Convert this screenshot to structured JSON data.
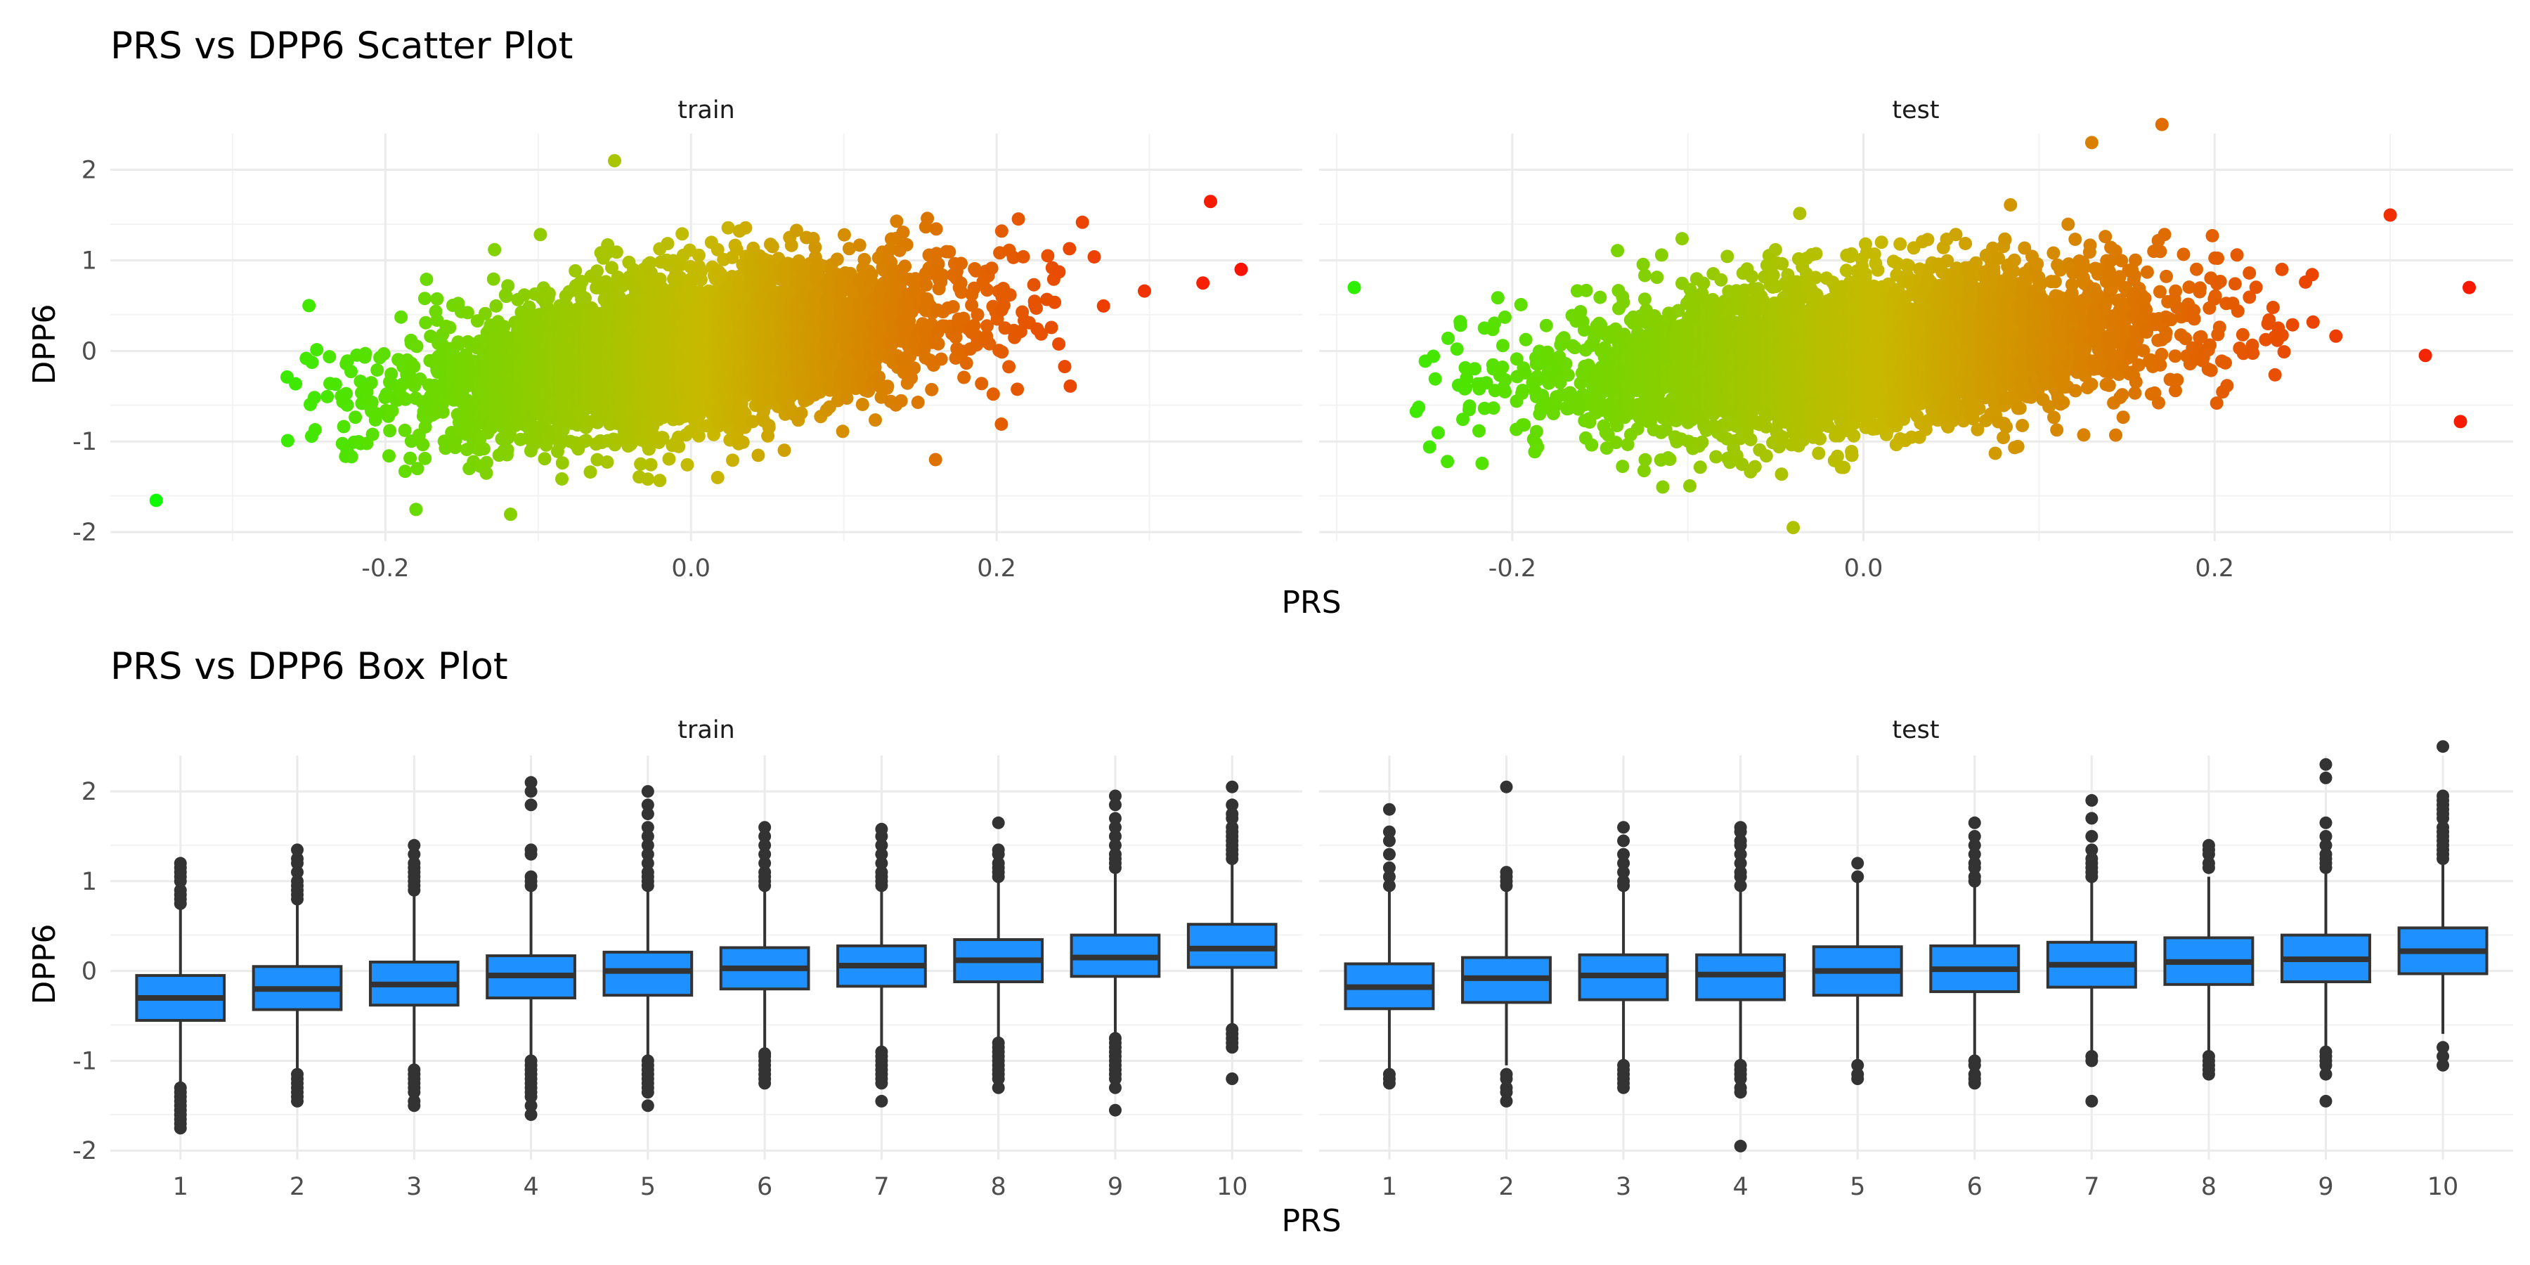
{
  "chart_data": [
    {
      "type": "scatter",
      "title": "PRS vs DPP6 Scatter Plot",
      "xlabel": "PRS",
      "ylabel": "DPP6",
      "facets": [
        "train",
        "test"
      ],
      "color_by": "PRS",
      "color_low": "#00ff00",
      "color_high": "#ff0000",
      "grid": true,
      "legend": "none",
      "panels": [
        {
          "name": "train",
          "xlim": [
            -0.38,
            0.4
          ],
          "ylim": [
            -2.1,
            2.4
          ],
          "xticks": [
            -0.2,
            0.0,
            0.2
          ],
          "xtick_labels": [
            "-0.2",
            "0.0",
            "0.2"
          ],
          "yticks": [
            -2,
            -1,
            0,
            1,
            2
          ],
          "ytick_labels": [
            "-2",
            "-1",
            "0",
            "1",
            "2"
          ],
          "bulk_x_range": [
            -0.27,
            0.31
          ],
          "trend": {
            "slope": 2.4,
            "intercept": 0.0
          },
          "residual_sd": 0.42,
          "outliers": [
            [
              -0.35,
              -1.65
            ],
            [
              0.34,
              1.65
            ],
            [
              0.36,
              0.9
            ],
            [
              0.335,
              0.75
            ],
            [
              -0.05,
              2.1
            ],
            [
              -0.25,
              0.5
            ],
            [
              -0.18,
              -1.75
            ],
            [
              0.16,
              -1.2
            ]
          ]
        },
        {
          "name": "test",
          "xlim": [
            -0.31,
            0.37
          ],
          "ylim": [
            -2.1,
            2.4
          ],
          "xticks": [
            -0.2,
            0.0,
            0.2
          ],
          "xtick_labels": [
            "-0.2",
            "0.0",
            "0.2"
          ],
          "yticks": [
            -2,
            -1,
            0,
            1,
            2
          ],
          "ytick_labels": [
            "-2",
            "-1",
            "0",
            "1",
            "2"
          ],
          "bulk_x_range": [
            -0.26,
            0.27
          ],
          "trend": {
            "slope": 1.9,
            "intercept": 0.0
          },
          "residual_sd": 0.42,
          "outliers": [
            [
              -0.29,
              0.7
            ],
            [
              0.345,
              0.7
            ],
            [
              0.34,
              -0.78
            ],
            [
              0.17,
              2.5
            ],
            [
              0.13,
              2.3
            ],
            [
              -0.04,
              -1.95
            ],
            [
              0.32,
              -0.05
            ],
            [
              0.3,
              1.5
            ]
          ]
        }
      ]
    },
    {
      "type": "box",
      "title": "PRS vs DPP6 Box Plot",
      "xlabel": "PRS",
      "ylabel": "DPP6",
      "facets": [
        "train",
        "test"
      ],
      "box_color": "#1e90ff",
      "categories": [
        "1",
        "2",
        "3",
        "4",
        "5",
        "6",
        "7",
        "8",
        "9",
        "10"
      ],
      "ylim": [
        -2.1,
        2.4
      ],
      "yticks": [
        -2,
        -1,
        0,
        1,
        2
      ],
      "ytick_labels": [
        "-2",
        "-1",
        "0",
        "1",
        "2"
      ],
      "panels": [
        {
          "name": "train",
          "boxes": [
            {
              "q1": -0.55,
              "median": -0.3,
              "q3": -0.05,
              "whisker_low": -1.25,
              "whisker_high": 0.7,
              "outliers": [
                -1.3,
                -1.35,
                -1.4,
                -1.45,
                -1.5,
                -1.55,
                -1.6,
                -1.65,
                -1.7,
                -1.75,
                0.75,
                0.8,
                0.85,
                0.9,
                1.0,
                1.05,
                1.1,
                1.15,
                1.2
              ]
            },
            {
              "q1": -0.43,
              "median": -0.2,
              "q3": 0.05,
              "whisker_low": -1.1,
              "whisker_high": 0.75,
              "outliers": [
                -1.15,
                -1.2,
                -1.25,
                -1.3,
                -1.35,
                -1.4,
                -1.45,
                0.8,
                0.85,
                0.9,
                0.95,
                1.0,
                1.1,
                1.2,
                1.25,
                1.35
              ]
            },
            {
              "q1": -0.38,
              "median": -0.15,
              "q3": 0.1,
              "whisker_low": -1.05,
              "whisker_high": 0.85,
              "outliers": [
                -1.1,
                -1.15,
                -1.2,
                -1.25,
                -1.3,
                -1.35,
                -1.45,
                -1.5,
                0.9,
                0.95,
                1.0,
                1.05,
                1.1,
                1.15,
                1.2,
                1.3,
                1.4
              ]
            },
            {
              "q1": -0.3,
              "median": -0.05,
              "q3": 0.17,
              "whisker_low": -0.95,
              "whisker_high": 0.9,
              "outliers": [
                -1.0,
                -1.05,
                -1.1,
                -1.15,
                -1.2,
                -1.25,
                -1.3,
                -1.35,
                -1.4,
                -1.5,
                -1.6,
                0.95,
                1.0,
                1.05,
                1.3,
                1.35,
                1.85,
                2.0,
                2.1
              ]
            },
            {
              "q1": -0.27,
              "median": 0.0,
              "q3": 0.21,
              "whisker_low": -0.95,
              "whisker_high": 0.9,
              "outliers": [
                -1.0,
                -1.05,
                -1.1,
                -1.15,
                -1.2,
                -1.25,
                -1.3,
                -1.35,
                -1.5,
                0.95,
                1.0,
                1.05,
                1.1,
                1.2,
                1.3,
                1.4,
                1.5,
                1.6,
                1.75,
                1.85,
                2.0
              ]
            },
            {
              "q1": -0.2,
              "median": 0.03,
              "q3": 0.26,
              "whisker_low": -0.88,
              "whisker_high": 0.9,
              "outliers": [
                -0.92,
                -0.95,
                -1.0,
                -1.05,
                -1.1,
                -1.15,
                -1.2,
                -1.25,
                0.95,
                1.0,
                1.05,
                1.1,
                1.2,
                1.3,
                1.4,
                1.5,
                1.6
              ]
            },
            {
              "q1": -0.17,
              "median": 0.06,
              "q3": 0.28,
              "whisker_low": -0.85,
              "whisker_high": 0.9,
              "outliers": [
                -0.9,
                -0.95,
                -1.0,
                -1.05,
                -1.1,
                -1.15,
                -1.2,
                -1.25,
                -1.45,
                0.95,
                1.0,
                1.05,
                1.1,
                1.2,
                1.3,
                1.4,
                1.5,
                1.58
              ]
            },
            {
              "q1": -0.12,
              "median": 0.12,
              "q3": 0.35,
              "whisker_low": -0.75,
              "whisker_high": 1.0,
              "outliers": [
                -0.8,
                -0.85,
                -0.9,
                -0.95,
                -1.0,
                -1.05,
                -1.1,
                -1.15,
                -1.2,
                -1.3,
                1.05,
                1.1,
                1.15,
                1.2,
                1.3,
                1.35,
                1.65
              ]
            },
            {
              "q1": -0.06,
              "median": 0.15,
              "q3": 0.4,
              "whisker_low": -0.7,
              "whisker_high": 1.1,
              "outliers": [
                -0.75,
                -0.8,
                -0.85,
                -0.9,
                -0.95,
                -1.0,
                -1.05,
                -1.1,
                -1.15,
                -1.2,
                -1.3,
                -1.55,
                1.15,
                1.2,
                1.25,
                1.3,
                1.4,
                1.5,
                1.6,
                1.7,
                1.85,
                1.95
              ]
            },
            {
              "q1": 0.04,
              "median": 0.25,
              "q3": 0.52,
              "whisker_low": -0.6,
              "whisker_high": 1.2,
              "outliers": [
                -0.65,
                -0.7,
                -0.75,
                -0.8,
                -0.85,
                -1.2,
                1.25,
                1.3,
                1.35,
                1.4,
                1.45,
                1.5,
                1.55,
                1.6,
                1.7,
                1.75,
                1.85,
                2.05
              ]
            }
          ]
        },
        {
          "name": "test",
          "boxes": [
            {
              "q1": -0.42,
              "median": -0.18,
              "q3": 0.08,
              "whisker_low": -1.1,
              "whisker_high": 0.9,
              "outliers": [
                -1.15,
                -1.2,
                -1.25,
                0.95,
                1.05,
                1.15,
                1.3,
                1.45,
                1.55,
                1.8
              ]
            },
            {
              "q1": -0.35,
              "median": -0.08,
              "q3": 0.15,
              "whisker_low": -1.05,
              "whisker_high": 0.9,
              "outliers": [
                -1.15,
                -1.2,
                -1.3,
                -1.35,
                -1.45,
                0.95,
                1.0,
                1.05,
                1.1,
                2.05
              ]
            },
            {
              "q1": -0.32,
              "median": -0.05,
              "q3": 0.18,
              "whisker_low": -1.0,
              "whisker_high": 0.9,
              "outliers": [
                -1.05,
                -1.1,
                -1.15,
                -1.2,
                -1.25,
                -1.3,
                0.95,
                1.0,
                1.1,
                1.2,
                1.3,
                1.45,
                1.6
              ]
            },
            {
              "q1": -0.32,
              "median": -0.04,
              "q3": 0.18,
              "whisker_low": -1.0,
              "whisker_high": 0.9,
              "outliers": [
                -1.05,
                -1.1,
                -1.15,
                -1.2,
                -1.3,
                -1.35,
                -1.95,
                0.95,
                1.05,
                1.1,
                1.2,
                1.3,
                1.4,
                1.45,
                1.55,
                1.6
              ]
            },
            {
              "q1": -0.27,
              "median": 0.0,
              "q3": 0.27,
              "whisker_low": -0.98,
              "whisker_high": 1.0,
              "outliers": [
                -1.05,
                -1.15,
                -1.2,
                1.05,
                1.2
              ]
            },
            {
              "q1": -0.23,
              "median": 0.02,
              "q3": 0.28,
              "whisker_low": -0.95,
              "whisker_high": 0.95,
              "outliers": [
                -1.0,
                -1.05,
                -1.15,
                -1.2,
                -1.25,
                1.0,
                1.05,
                1.15,
                1.2,
                1.3,
                1.4,
                1.5,
                1.65
              ]
            },
            {
              "q1": -0.18,
              "median": 0.07,
              "q3": 0.32,
              "whisker_low": -0.9,
              "whisker_high": 1.0,
              "outliers": [
                -0.95,
                -1.0,
                -1.45,
                1.05,
                1.1,
                1.15,
                1.2,
                1.25,
                1.35,
                1.5,
                1.7,
                1.9
              ]
            },
            {
              "q1": -0.15,
              "median": 0.1,
              "q3": 0.37,
              "whisker_low": -0.9,
              "whisker_high": 1.05,
              "outliers": [
                -0.95,
                -1.0,
                -1.05,
                -1.1,
                -1.15,
                1.15,
                1.2,
                1.3,
                1.35,
                1.4
              ]
            },
            {
              "q1": -0.12,
              "median": 0.13,
              "q3": 0.4,
              "whisker_low": -0.85,
              "whisker_high": 1.1,
              "outliers": [
                -0.9,
                -0.95,
                -1.0,
                -1.05,
                -1.15,
                -1.45,
                1.15,
                1.2,
                1.25,
                1.3,
                1.4,
                1.5,
                1.65,
                2.15,
                2.3
              ]
            },
            {
              "q1": -0.03,
              "median": 0.22,
              "q3": 0.48,
              "whisker_low": -0.7,
              "whisker_high": 1.2,
              "outliers": [
                -0.85,
                -0.95,
                -1.05,
                1.25,
                1.3,
                1.35,
                1.4,
                1.45,
                1.5,
                1.55,
                1.6,
                1.7,
                1.75,
                1.8,
                1.85,
                1.9,
                1.95,
                2.5
              ]
            }
          ]
        }
      ]
    }
  ]
}
